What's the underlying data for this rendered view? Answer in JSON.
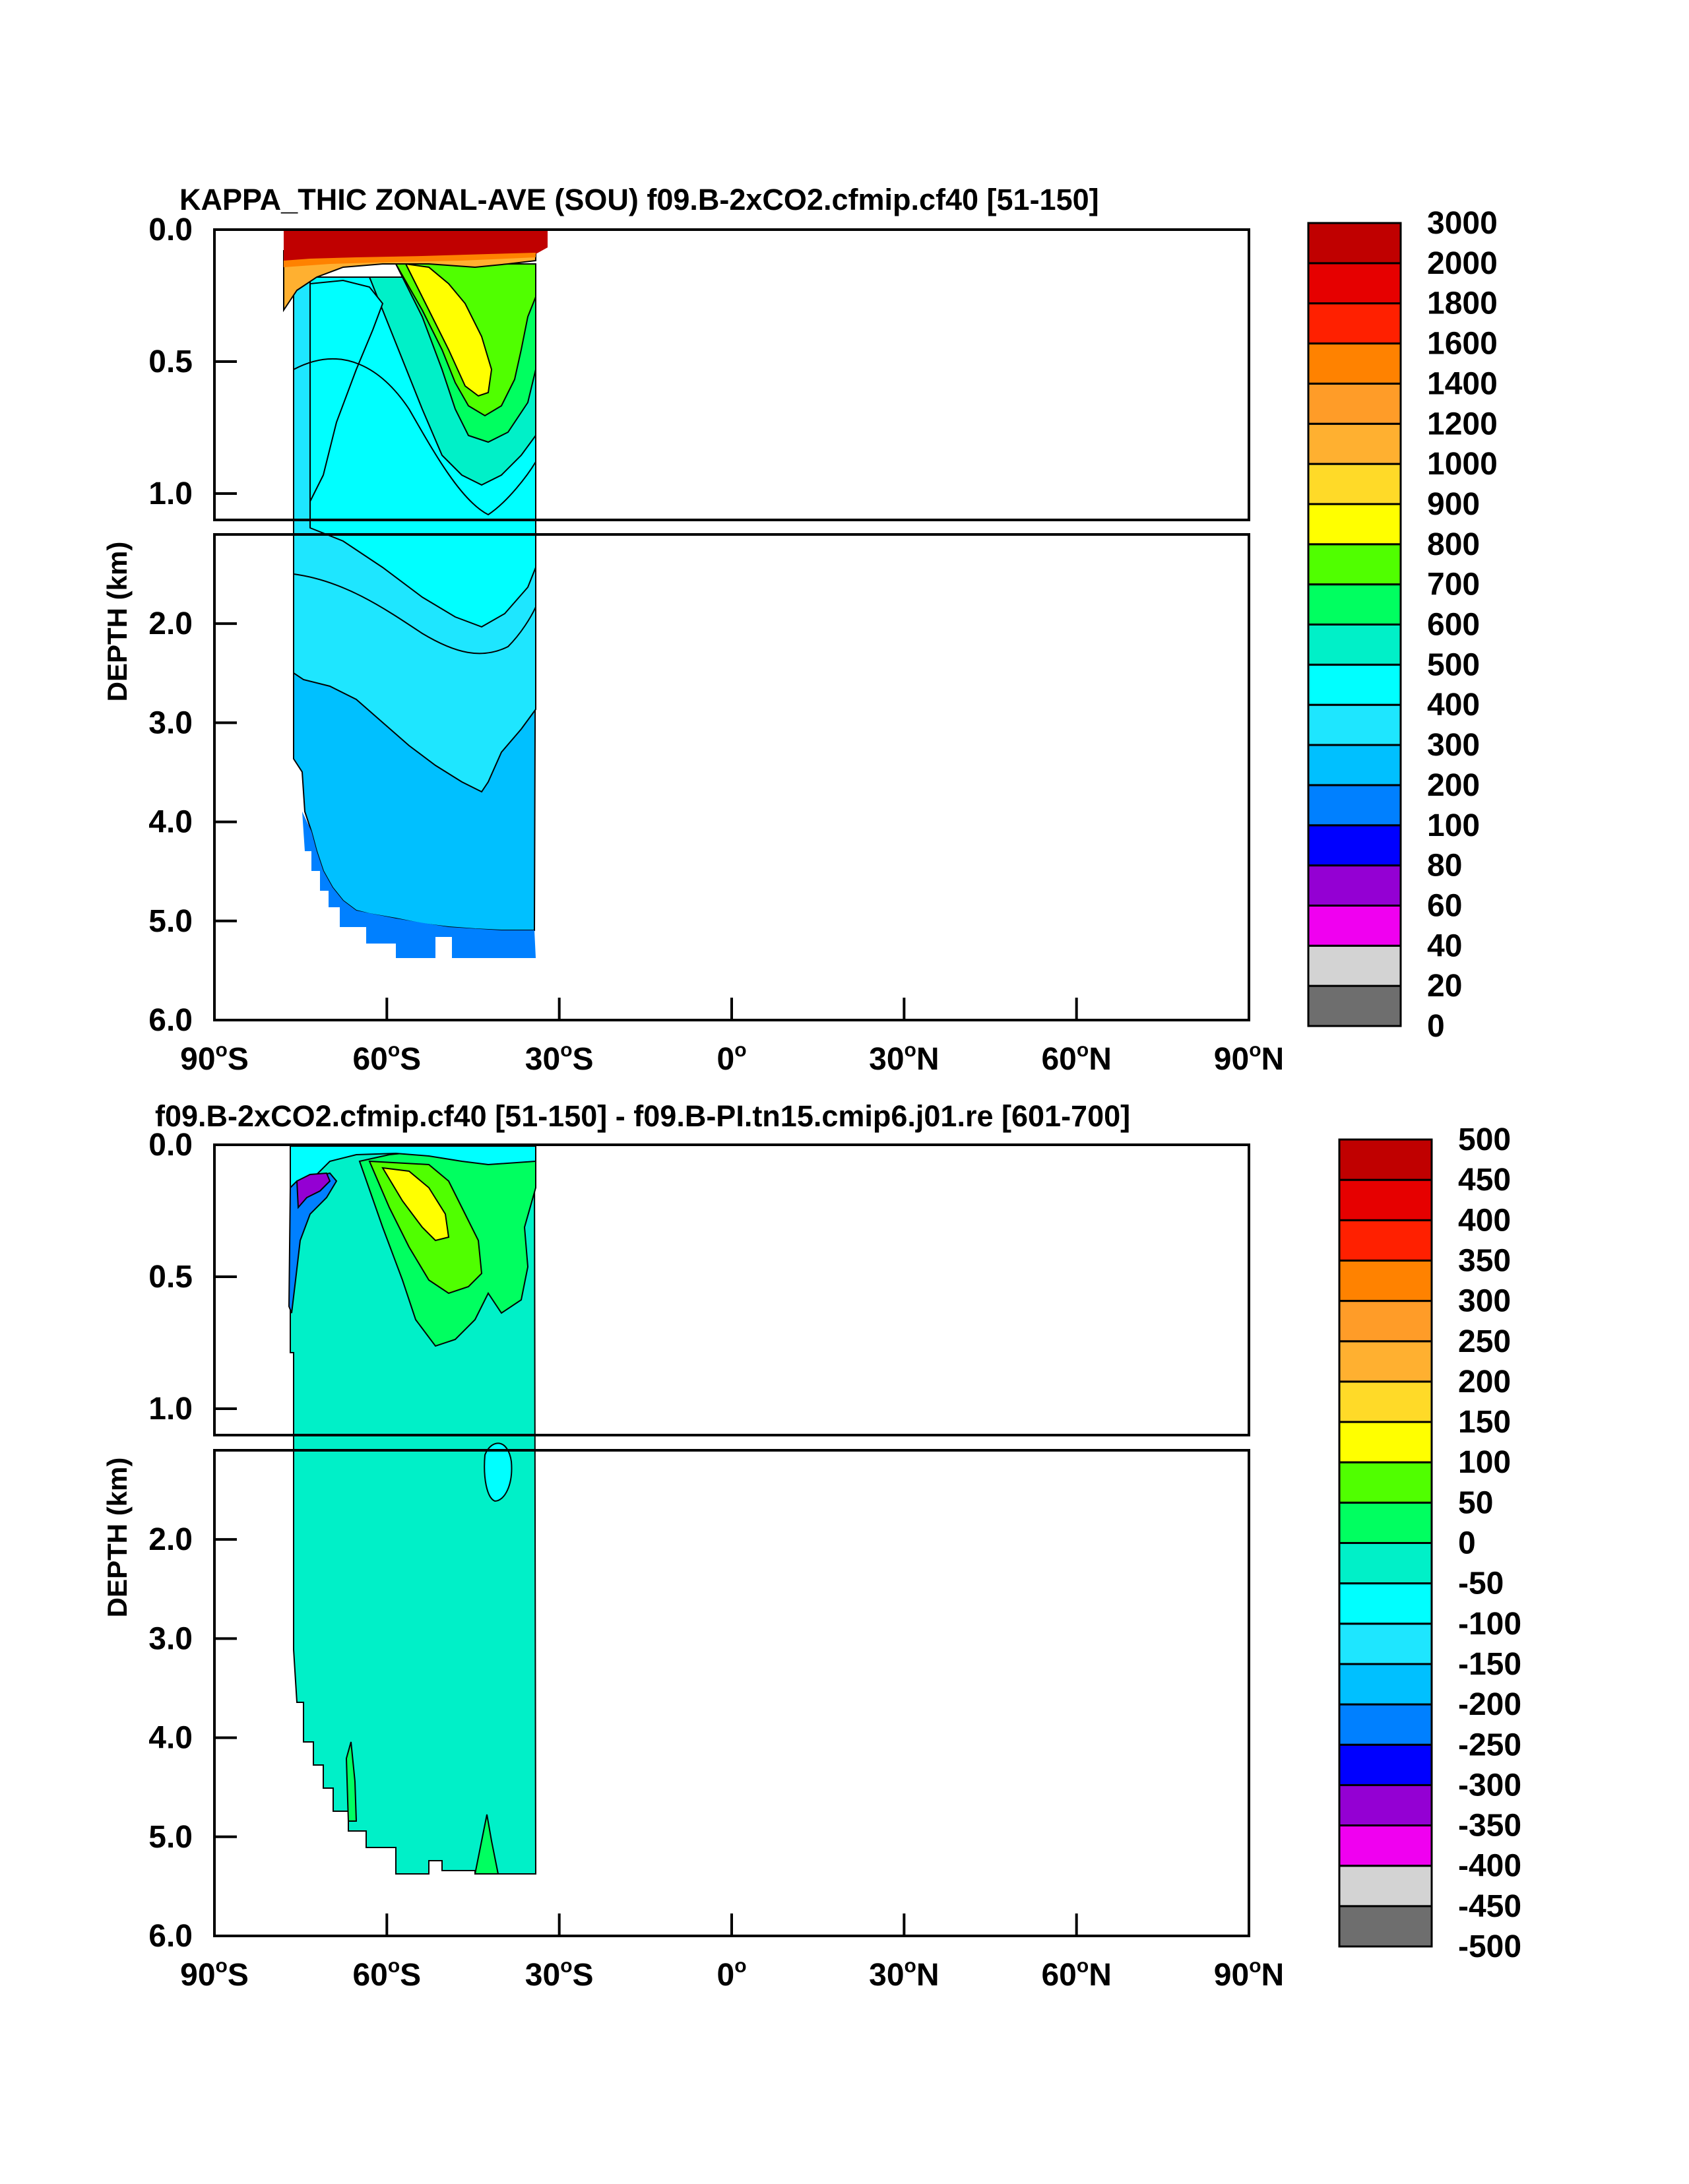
{
  "figure": {
    "top_title": "KAPPA_THIC ZONAL-AVE (SOU) f09.B-2xCO2.cfmip.cf40 [51-150]",
    "bottom_title": "f09.B-2xCO2.cfmip.cf40 [51-150] - f09.B-PI.tn15.cmip6.j01.re [601-700]",
    "ylabel": "DEPTH (km)"
  },
  "axes": {
    "x_ticks": [
      {
        "deg": "90",
        "sup": "o",
        "hemi": "S"
      },
      {
        "deg": "60",
        "sup": "o",
        "hemi": "S"
      },
      {
        "deg": "30",
        "sup": "o",
        "hemi": "S"
      },
      {
        "deg": "0",
        "sup": "o",
        "hemi": ""
      },
      {
        "deg": "30",
        "sup": "o",
        "hemi": "N"
      },
      {
        "deg": "60",
        "sup": "o",
        "hemi": "N"
      },
      {
        "deg": "90",
        "sup": "o",
        "hemi": "N"
      }
    ],
    "y_ticks_upper": [
      "0.0",
      "0.5",
      "1.0"
    ],
    "y_ticks_lower": [
      "2.0",
      "3.0",
      "4.0",
      "5.0",
      "6.0"
    ]
  },
  "colors": [
    "#6e6e6e",
    "#d3d3d3",
    "#f000f0",
    "#9400d3",
    "#0000ff",
    "#0080ff",
    "#00c0ff",
    "#1ee6ff",
    "#00ffff",
    "#00f0c8",
    "#00ff60",
    "#50ff00",
    "#ffff00",
    "#ffda28",
    "#ffb030",
    "#ff9c28",
    "#ff8200",
    "#ff2000",
    "#e60000",
    "#c00000"
  ],
  "chart_data": [
    {
      "type": "heatmap",
      "title": "KAPPA_THIC ZONAL-AVE (SOU) f09.B-2xCO2.cfmip.cf40 [51-150]",
      "xlabel": "",
      "ylabel": "DEPTH (km)",
      "xlim": [
        -90,
        90
      ],
      "ylim_km": [
        6.0,
        0.0
      ],
      "data_extent_lat": [
        -78,
        -34
      ],
      "colorbar_levels": [
        "0",
        "20",
        "40",
        "60",
        "80",
        "100",
        "200",
        "300",
        "400",
        "500",
        "600",
        "700",
        "800",
        "900",
        "1000",
        "1200",
        "1400",
        "1600",
        "1800",
        "2000",
        "3000"
      ]
    },
    {
      "type": "heatmap",
      "title": "f09.B-2xCO2.cfmip.cf40 [51-150] - f09.B-PI.tn15.cmip6.j01.re [601-700]",
      "xlabel": "",
      "ylabel": "DEPTH (km)",
      "xlim": [
        -90,
        90
      ],
      "ylim_km": [
        6.0,
        0.0
      ],
      "data_extent_lat": [
        -78,
        -34
      ],
      "colorbar_levels": [
        "-500",
        "-450",
        "-400",
        "-350",
        "-300",
        "-250",
        "-200",
        "-150",
        "-100",
        "-50",
        "0",
        "50",
        "100",
        "150",
        "200",
        "250",
        "300",
        "350",
        "400",
        "450",
        "500"
      ]
    }
  ]
}
